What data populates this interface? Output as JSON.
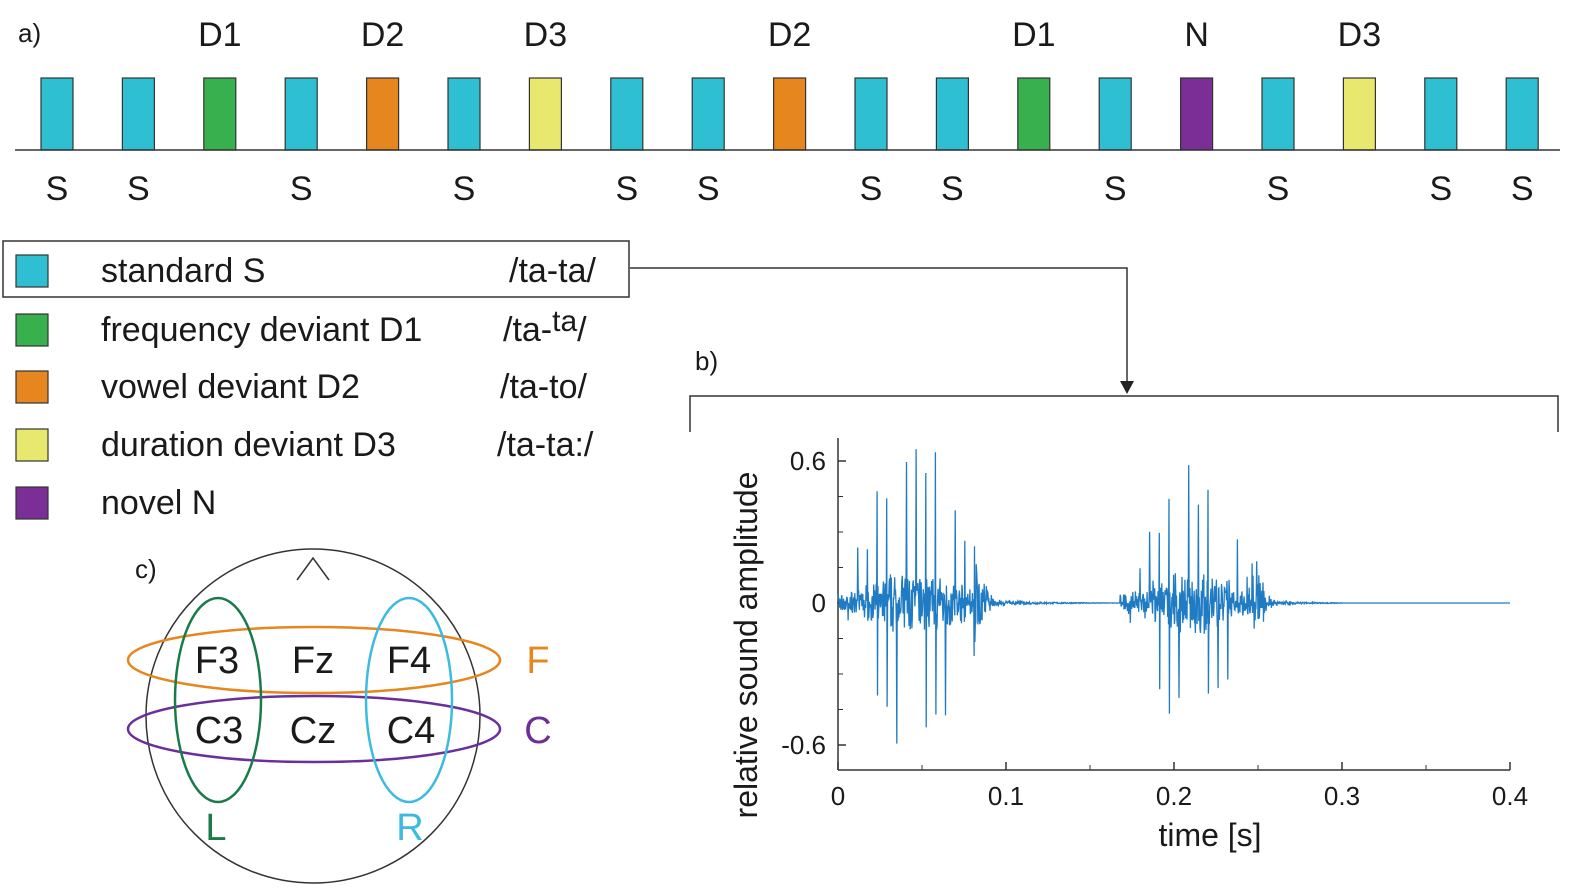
{
  "panel_a": {
    "label": "a)",
    "sequence": [
      {
        "type": "S",
        "deviant_label": "",
        "standard_label": "S"
      },
      {
        "type": "S",
        "deviant_label": "",
        "standard_label": "S"
      },
      {
        "type": "D1",
        "deviant_label": "D1",
        "standard_label": ""
      },
      {
        "type": "S",
        "deviant_label": "",
        "standard_label": "S"
      },
      {
        "type": "D2",
        "deviant_label": "D2",
        "standard_label": ""
      },
      {
        "type": "S",
        "deviant_label": "",
        "standard_label": "S"
      },
      {
        "type": "D3",
        "deviant_label": "D3",
        "standard_label": ""
      },
      {
        "type": "S",
        "deviant_label": "",
        "standard_label": "S"
      },
      {
        "type": "S",
        "deviant_label": "",
        "standard_label": "S"
      },
      {
        "type": "D2",
        "deviant_label": "D2",
        "standard_label": ""
      },
      {
        "type": "S",
        "deviant_label": "",
        "standard_label": "S"
      },
      {
        "type": "S",
        "deviant_label": "",
        "standard_label": "S"
      },
      {
        "type": "D1",
        "deviant_label": "D1",
        "standard_label": ""
      },
      {
        "type": "S",
        "deviant_label": "",
        "standard_label": "S"
      },
      {
        "type": "N",
        "deviant_label": "N",
        "standard_label": ""
      },
      {
        "type": "S",
        "deviant_label": "",
        "standard_label": "S"
      },
      {
        "type": "D3",
        "deviant_label": "D3",
        "standard_label": ""
      },
      {
        "type": "S",
        "deviant_label": "",
        "standard_label": "S"
      },
      {
        "type": "S",
        "deviant_label": "",
        "standard_label": "S"
      }
    ]
  },
  "colors": {
    "S": "#2ec0d2",
    "D1": "#37b04d",
    "D2": "#e6861f",
    "D3": "#e8e86e",
    "N": "#7b2f96",
    "waveform": "#1f7bc4",
    "F": "#e6861f",
    "C": "#6a2f9a",
    "L": "#1b7a4a",
    "R": "#3bbbe0"
  },
  "legend": [
    {
      "type": "S",
      "name": "standard S",
      "code": "/ta-ta/",
      "code_super": ""
    },
    {
      "type": "D1",
      "name": "frequency deviant D1",
      "code": "/ta-",
      "code_super": "ta",
      "code_after": "/"
    },
    {
      "type": "D2",
      "name": "vowel deviant D2",
      "code": "/ta-to/",
      "code_super": ""
    },
    {
      "type": "D3",
      "name": "duration deviant D3",
      "code": "/ta-ta:/",
      "code_super": ""
    },
    {
      "type": "N",
      "name": "novel N",
      "code": "",
      "code_super": ""
    }
  ],
  "panel_b": {
    "label": "b)"
  },
  "panel_c": {
    "label": "c)",
    "electrodes": [
      "F3",
      "Fz",
      "F4",
      "C3",
      "Cz",
      "C4"
    ],
    "regions": {
      "frontal": "F",
      "central": "C",
      "left": "L",
      "right": "R"
    }
  },
  "chart_data": {
    "type": "line",
    "title": "",
    "xlabel": "time [s]",
    "ylabel": "relative sound amplitude",
    "xlim": [
      0,
      0.4
    ],
    "ylim": [
      -0.6,
      0.6
    ],
    "xticks": [
      "0",
      "0.1",
      "0.2",
      "0.3",
      "0.4"
    ],
    "yticks": [
      "0.6",
      "0",
      "-0.6"
    ],
    "series": [
      {
        "description_segments": [
          {
            "t_start": 0.0,
            "t_end": 0.09,
            "peak": 0.63
          },
          {
            "t_start": 0.168,
            "t_end": 0.255,
            "peak": 0.52
          }
        ],
        "silence_after": 0.3
      }
    ]
  }
}
